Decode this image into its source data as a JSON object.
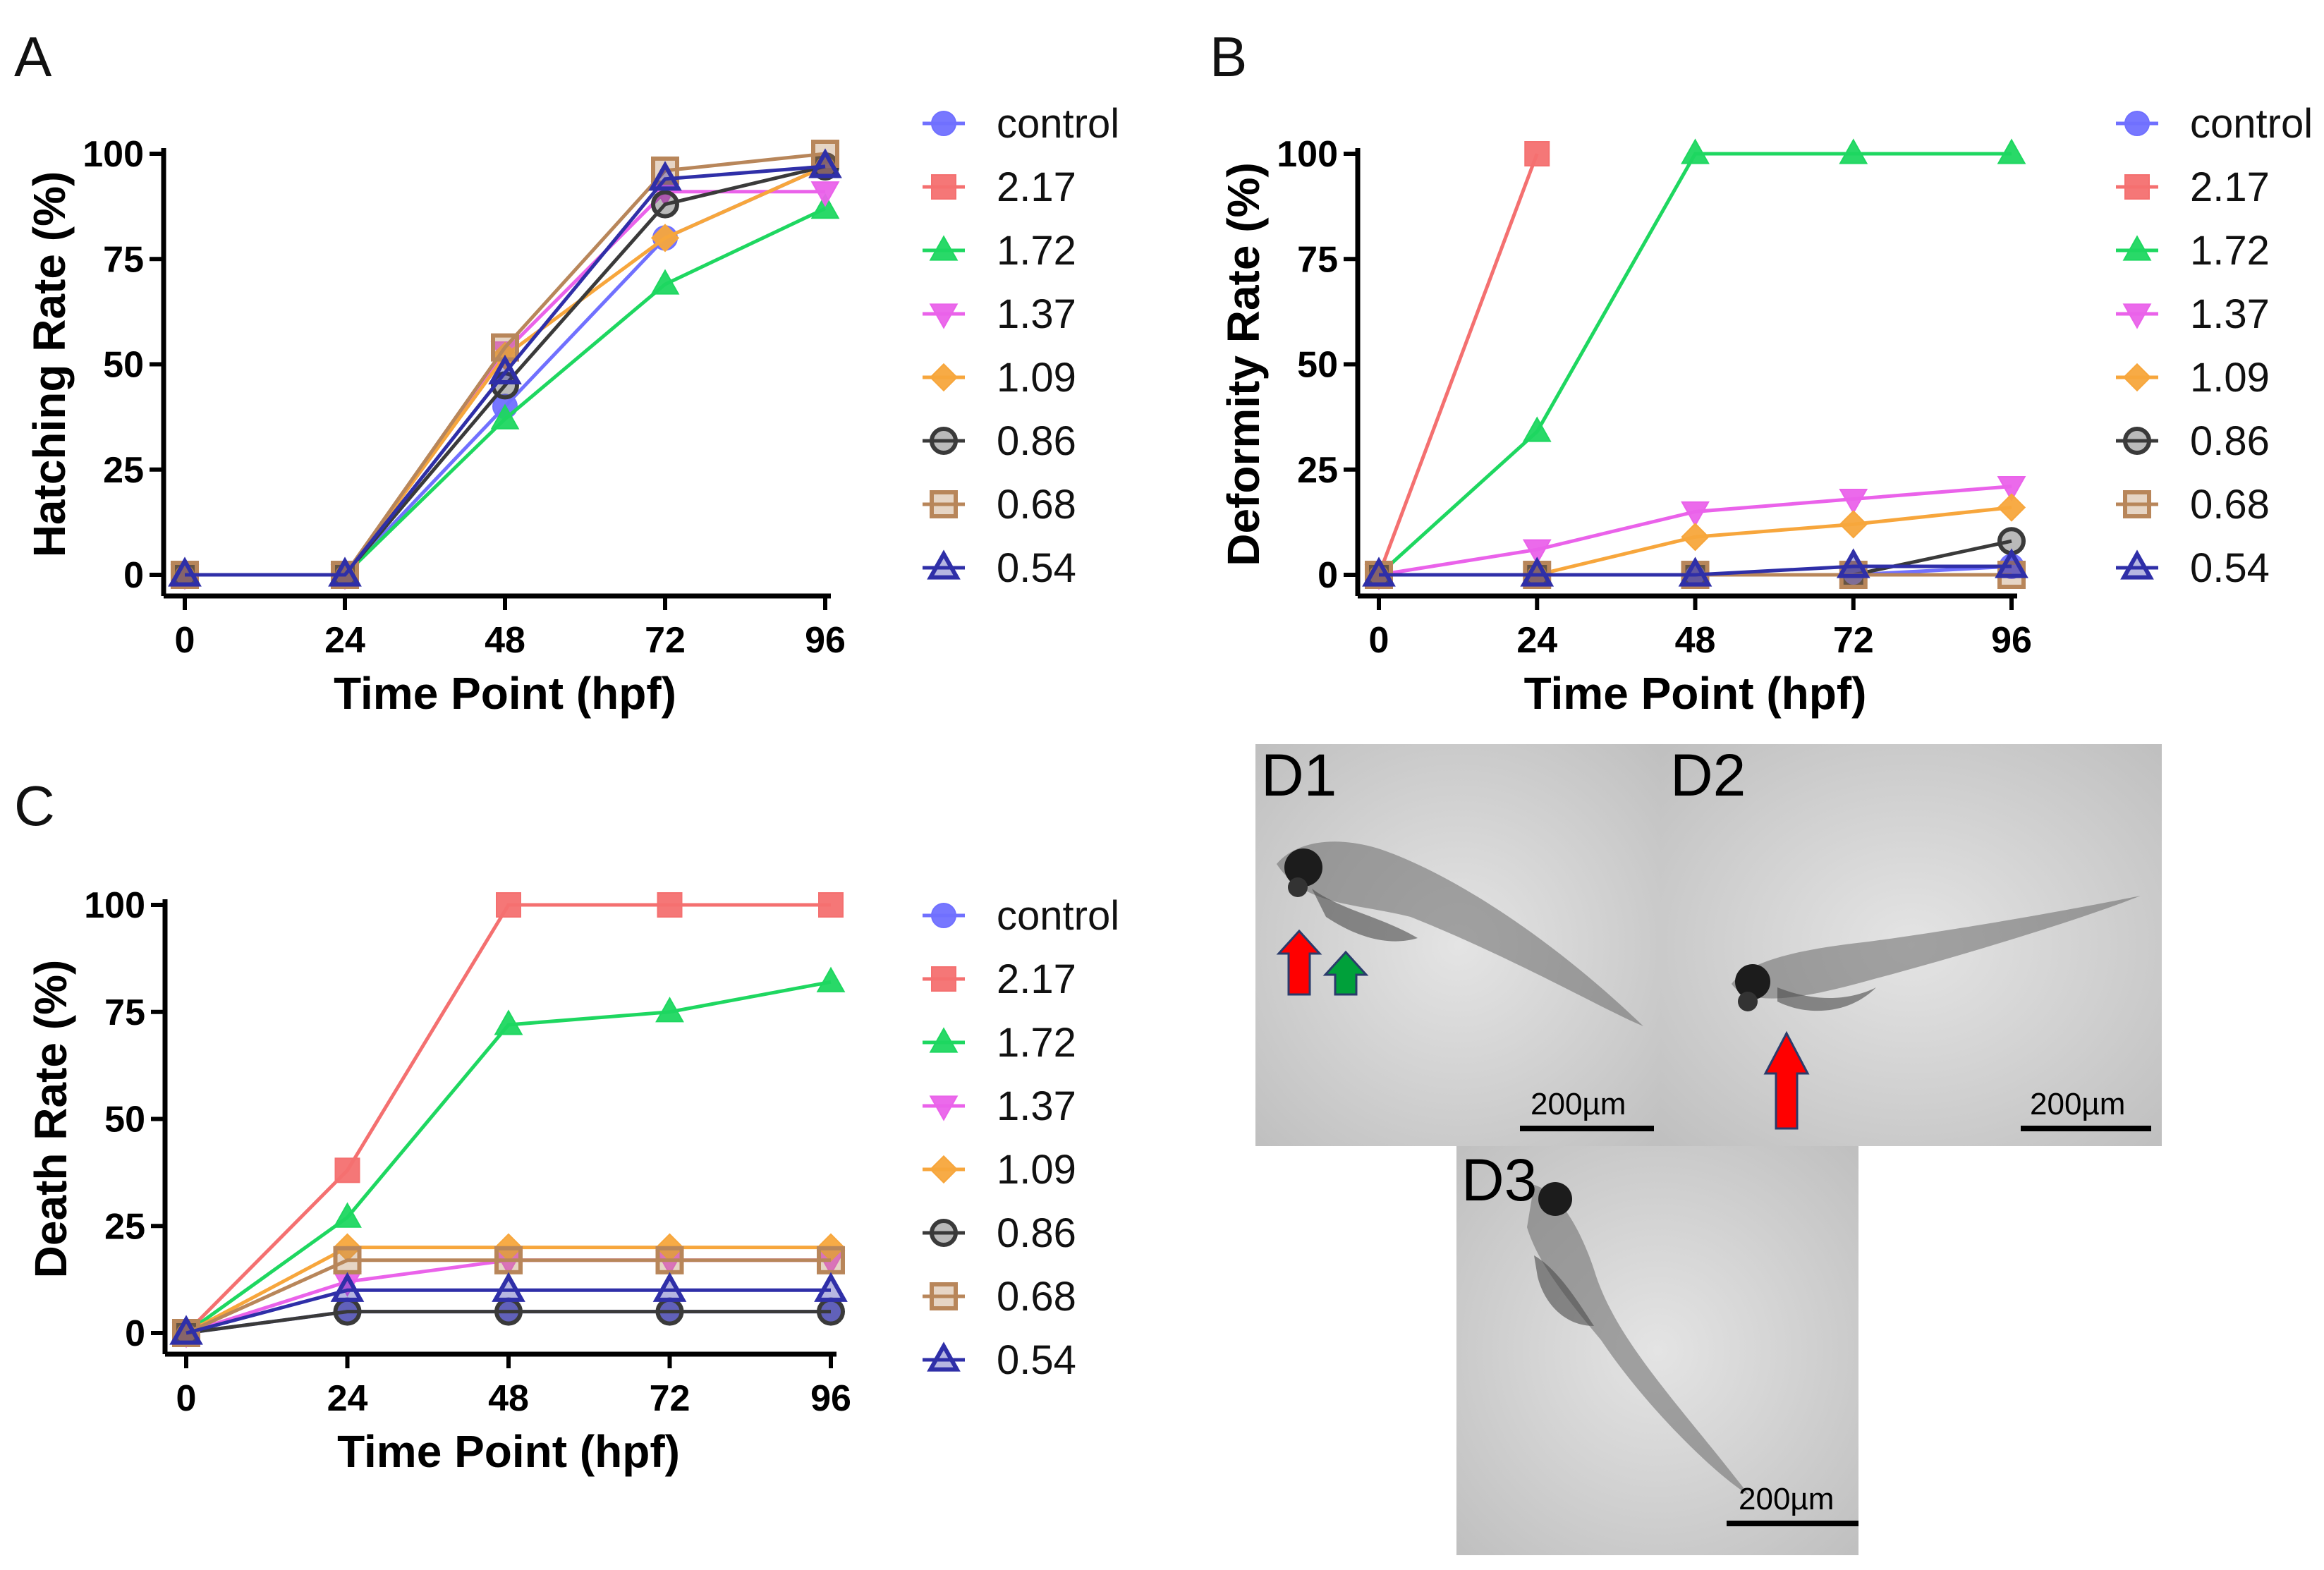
{
  "chart_data": [
    {
      "panel": "A",
      "type": "line",
      "xlabel": "Time Point (hpf)",
      "ylabel": "Hatching Rate (%)",
      "x": [
        0,
        24,
        48,
        72,
        96
      ],
      "xticks": [
        "0",
        "24",
        "48",
        "72",
        "96"
      ],
      "yticks": [
        "0",
        "25",
        "50",
        "75",
        "100"
      ],
      "ylim": [
        0,
        100
      ],
      "legend_position": "right",
      "series": [
        {
          "name": "control",
          "marker": "circle",
          "color": "#7070ff",
          "values": [
            0,
            0,
            40,
            80,
            97
          ]
        },
        {
          "name": "2.17",
          "marker": "square",
          "color": "#f47070",
          "values": [
            null,
            null,
            null,
            null,
            null
          ]
        },
        {
          "name": "1.72",
          "marker": "triangle-up",
          "color": "#1ed760",
          "values": [
            0,
            0,
            37,
            69,
            87
          ]
        },
        {
          "name": "1.37",
          "marker": "triangle-down",
          "color": "#ea62ea",
          "values": [
            0,
            0,
            53,
            91,
            91
          ]
        },
        {
          "name": "1.09",
          "marker": "diamond",
          "color": "#f7a63c",
          "values": [
            0,
            0,
            52,
            80,
            97
          ]
        },
        {
          "name": "0.86",
          "marker": "circle-open",
          "color": "#3a3a3a",
          "values": [
            0,
            0,
            45,
            88,
            97
          ]
        },
        {
          "name": "0.68",
          "marker": "square-open",
          "color": "#b8865a",
          "values": [
            0,
            0,
            54,
            96,
            100
          ]
        },
        {
          "name": "0.54",
          "marker": "triangle-open",
          "color": "#2f2fa8",
          "values": [
            0,
            0,
            48,
            94,
            97
          ]
        }
      ]
    },
    {
      "panel": "B",
      "type": "line",
      "xlabel": "Time Point (hpf)",
      "ylabel": "Deformity Rate (%)",
      "x": [
        0,
        24,
        48,
        72,
        96
      ],
      "xticks": [
        "0",
        "24",
        "48",
        "72",
        "96"
      ],
      "yticks": [
        "0",
        "25",
        "50",
        "75",
        "100"
      ],
      "ylim": [
        0,
        100
      ],
      "legend_position": "right",
      "series": [
        {
          "name": "control",
          "marker": "circle",
          "color": "#7070ff",
          "values": [
            0,
            0,
            0,
            0,
            2
          ]
        },
        {
          "name": "2.17",
          "marker": "square",
          "color": "#f47070",
          "values": [
            0,
            100,
            null,
            null,
            null
          ]
        },
        {
          "name": "1.72",
          "marker": "triangle-up",
          "color": "#1ed760",
          "values": [
            0,
            34,
            100,
            100,
            100
          ]
        },
        {
          "name": "1.37",
          "marker": "triangle-down",
          "color": "#ea62ea",
          "values": [
            0,
            6,
            15,
            18,
            21
          ]
        },
        {
          "name": "1.09",
          "marker": "diamond",
          "color": "#f7a63c",
          "values": [
            0,
            0,
            9,
            12,
            16
          ]
        },
        {
          "name": "0.86",
          "marker": "circle-open",
          "color": "#3a3a3a",
          "values": [
            0,
            0,
            0,
            0,
            8
          ]
        },
        {
          "name": "0.68",
          "marker": "square-open",
          "color": "#b8865a",
          "values": [
            0,
            0,
            0,
            0,
            0
          ]
        },
        {
          "name": "0.54",
          "marker": "triangle-open",
          "color": "#2f2fa8",
          "values": [
            0,
            0,
            0,
            2,
            2
          ]
        }
      ]
    },
    {
      "panel": "C",
      "type": "line",
      "xlabel": "Time Point (hpf)",
      "ylabel": "Death Rate (%)",
      "x": [
        0,
        24,
        48,
        72,
        96
      ],
      "xticks": [
        "0",
        "24",
        "48",
        "72",
        "96"
      ],
      "yticks": [
        "0",
        "25",
        "50",
        "75",
        "100"
      ],
      "ylim": [
        0,
        100
      ],
      "legend_position": "right",
      "series": [
        {
          "name": "control",
          "marker": "circle",
          "color": "#7070ff",
          "values": [
            0,
            5,
            5,
            5,
            5
          ]
        },
        {
          "name": "2.17",
          "marker": "square",
          "color": "#f47070",
          "values": [
            0,
            38,
            100,
            100,
            100
          ]
        },
        {
          "name": "1.72",
          "marker": "triangle-up",
          "color": "#1ed760",
          "values": [
            0,
            27,
            72,
            75,
            82
          ]
        },
        {
          "name": "1.37",
          "marker": "triangle-down",
          "color": "#ea62ea",
          "values": [
            0,
            12,
            17,
            17,
            17
          ]
        },
        {
          "name": "1.09",
          "marker": "diamond",
          "color": "#f7a63c",
          "values": [
            0,
            20,
            20,
            20,
            20
          ]
        },
        {
          "name": "0.86",
          "marker": "circle-open",
          "color": "#3a3a3a",
          "values": [
            0,
            5,
            5,
            5,
            5
          ]
        },
        {
          "name": "0.68",
          "marker": "square-open",
          "color": "#b8865a",
          "values": [
            0,
            17,
            17,
            17,
            17
          ]
        },
        {
          "name": "0.54",
          "marker": "triangle-open",
          "color": "#2f2fa8",
          "values": [
            0,
            10,
            10,
            10,
            10
          ]
        }
      ]
    }
  ],
  "micrographs": [
    {
      "label": "D1",
      "scale_bar": "200µm",
      "arrows": [
        "red",
        "green"
      ]
    },
    {
      "label": "D2",
      "scale_bar": "200µm",
      "arrows": [
        "red"
      ]
    },
    {
      "label": "D3",
      "scale_bar": "200µm",
      "arrows": []
    }
  ]
}
